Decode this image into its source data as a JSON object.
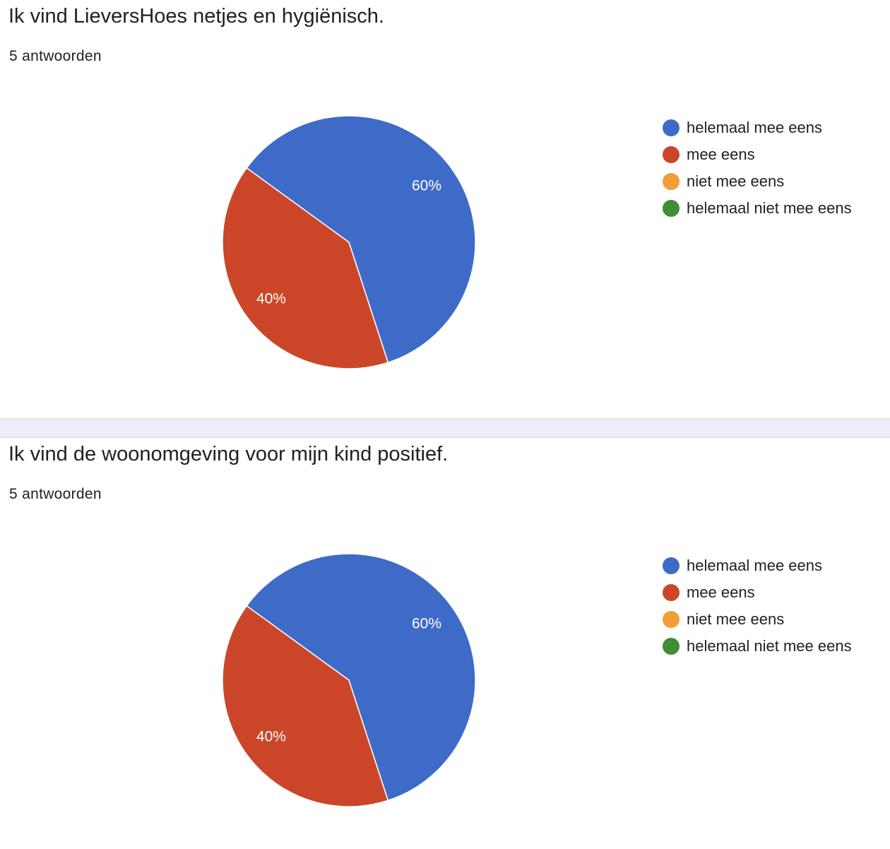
{
  "questions": [
    {
      "title": "Ik vind LieversHoes netjes en hygiënisch.",
      "response_count": "5 antwoorden"
    },
    {
      "title": "Ik vind de woonomgeving voor mijn kind positief.",
      "response_count": "5 antwoorden"
    }
  ],
  "chart_data": [
    {
      "type": "pie",
      "title": "Ik vind LieversHoes netjes en hygiënisch.",
      "categories": [
        "helemaal mee eens",
        "mee eens",
        "niet mee eens",
        "helemaal niet mee eens"
      ],
      "values": [
        60,
        40,
        0,
        0
      ],
      "labels": [
        "60%",
        "40%",
        "",
        ""
      ],
      "colors": [
        "#3e6bc7",
        "#cb4628",
        "#f29e37",
        "#3e8e34"
      ],
      "legend_position": "right"
    },
    {
      "type": "pie",
      "title": "Ik vind de woonomgeving voor mijn kind positief.",
      "categories": [
        "helemaal mee eens",
        "mee eens",
        "niet mee eens",
        "helemaal niet mee eens"
      ],
      "values": [
        60,
        40,
        0,
        0
      ],
      "labels": [
        "60%",
        "40%",
        "",
        ""
      ],
      "colors": [
        "#3e6bc7",
        "#cb4628",
        "#f29e37",
        "#3e8e34"
      ],
      "legend_position": "right"
    }
  ]
}
